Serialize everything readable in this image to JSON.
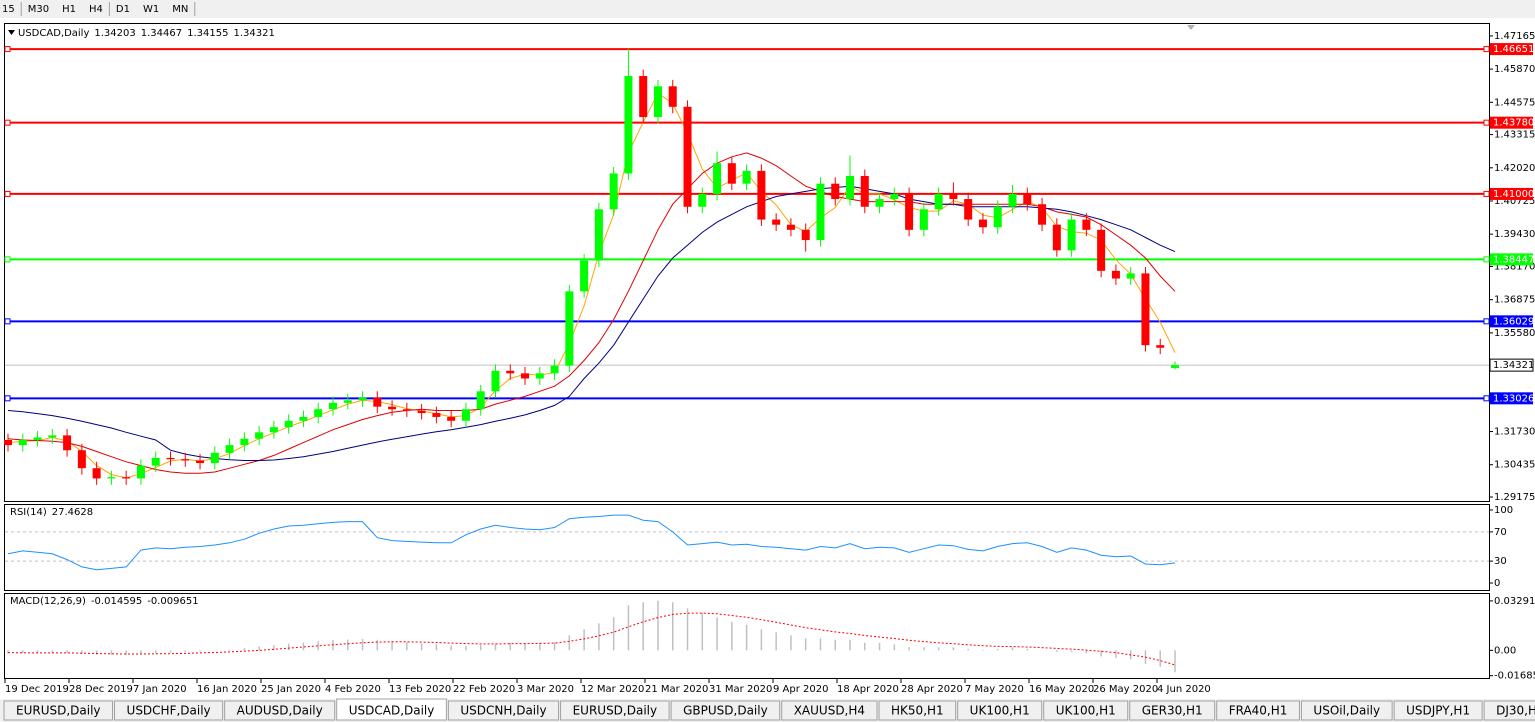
{
  "toolbar": {
    "timeframes": [
      "15",
      "M30",
      "H1",
      "H4",
      "D1",
      "W1",
      "MN"
    ]
  },
  "chart_data": [
    {
      "type": "candlestick",
      "symbol": "USDCAD,Daily",
      "up_color": "#00ff00",
      "down_color": "#ff0000",
      "candles": [
        [
          1.314,
          1.3165,
          1.3095,
          1.312
        ],
        [
          1.312,
          1.3165,
          1.3095,
          1.314
        ],
        [
          1.314,
          1.3175,
          1.3115,
          1.315
        ],
        [
          1.315,
          1.3183,
          1.3125,
          1.3158
        ],
        [
          1.3158,
          1.3183,
          1.3075,
          1.31
        ],
        [
          1.31,
          1.3125,
          1.3005,
          1.303
        ],
        [
          1.303,
          1.3055,
          1.2965,
          1.299
        ],
        [
          1.299,
          1.302,
          1.2965,
          1.2995
        ],
        [
          1.2995,
          1.302,
          1.2965,
          1.299
        ],
        [
          1.299,
          1.3065,
          1.2965,
          1.304
        ],
        [
          1.304,
          1.3095,
          1.3015,
          1.307
        ],
        [
          1.307,
          1.3095,
          1.304,
          1.3065
        ],
        [
          1.3065,
          1.309,
          1.3035,
          1.306
        ],
        [
          1.306,
          1.3085,
          1.3025,
          1.305
        ],
        [
          1.305,
          1.3115,
          1.3025,
          1.309
        ],
        [
          1.309,
          1.3145,
          1.3065,
          1.312
        ],
        [
          1.312,
          1.317,
          1.3095,
          1.3145
        ],
        [
          1.3145,
          1.3195,
          1.312,
          1.317
        ],
        [
          1.317,
          1.3215,
          1.3145,
          1.319
        ],
        [
          1.319,
          1.324,
          1.3165,
          1.3215
        ],
        [
          1.3215,
          1.3255,
          1.319,
          1.323
        ],
        [
          1.323,
          1.3285,
          1.3205,
          1.326
        ],
        [
          1.326,
          1.331,
          1.3235,
          1.3285
        ],
        [
          1.3285,
          1.332,
          1.326,
          1.3295
        ],
        [
          1.3295,
          1.333,
          1.327,
          1.3305
        ],
        [
          1.3305,
          1.333,
          1.3245,
          1.327
        ],
        [
          1.327,
          1.3295,
          1.3235,
          1.326
        ],
        [
          1.326,
          1.3285,
          1.323,
          1.3255
        ],
        [
          1.3255,
          1.328,
          1.322,
          1.3245
        ],
        [
          1.3245,
          1.327,
          1.3205,
          1.323
        ],
        [
          1.323,
          1.3255,
          1.319,
          1.3215
        ],
        [
          1.3215,
          1.3285,
          1.319,
          1.326
        ],
        [
          1.326,
          1.3355,
          1.3235,
          1.333
        ],
        [
          1.333,
          1.3435,
          1.3305,
          1.341
        ],
        [
          1.341,
          1.3435,
          1.3375,
          1.34
        ],
        [
          1.34,
          1.3425,
          1.3355,
          1.338
        ],
        [
          1.338,
          1.3425,
          1.3355,
          1.34
        ],
        [
          1.34,
          1.3455,
          1.3375,
          1.343
        ],
        [
          1.343,
          1.3745,
          1.3405,
          1.372
        ],
        [
          1.372,
          1.3865,
          1.3695,
          1.384
        ],
        [
          1.384,
          1.4065,
          1.3815,
          1.404
        ],
        [
          1.404,
          1.4205,
          1.4015,
          1.418
        ],
        [
          1.418,
          1.4667,
          1.4155,
          1.456
        ],
        [
          1.456,
          1.4585,
          1.4375,
          1.44
        ],
        [
          1.44,
          1.4545,
          1.4375,
          1.452
        ],
        [
          1.452,
          1.4545,
          1.4415,
          1.444
        ],
        [
          1.444,
          1.4465,
          1.4025,
          1.405
        ],
        [
          1.405,
          1.4125,
          1.4025,
          1.41
        ],
        [
          1.41,
          1.4265,
          1.4075,
          1.422
        ],
        [
          1.422,
          1.4245,
          1.4115,
          1.414
        ],
        [
          1.414,
          1.4215,
          1.4115,
          1.419
        ],
        [
          1.419,
          1.4215,
          1.3975,
          1.4
        ],
        [
          1.4,
          1.4025,
          1.3955,
          1.398
        ],
        [
          1.398,
          1.4005,
          1.3935,
          1.396
        ],
        [
          1.396,
          1.3985,
          1.3875,
          1.392
        ],
        [
          1.392,
          1.4165,
          1.3895,
          1.414
        ],
        [
          1.414,
          1.4165,
          1.4055,
          1.408
        ],
        [
          1.408,
          1.425,
          1.4055,
          1.417
        ],
        [
          1.417,
          1.4195,
          1.4025,
          1.405
        ],
        [
          1.405,
          1.4105,
          1.4025,
          1.408
        ],
        [
          1.408,
          1.4125,
          1.4055,
          1.41
        ],
        [
          1.41,
          1.4125,
          1.3935,
          1.396
        ],
        [
          1.396,
          1.4065,
          1.3935,
          1.404
        ],
        [
          1.404,
          1.4125,
          1.4015,
          1.41
        ],
        [
          1.41,
          1.4145,
          1.4055,
          1.408
        ],
        [
          1.408,
          1.4105,
          1.3975,
          1.4
        ],
        [
          1.4,
          1.4025,
          1.3945,
          1.397
        ],
        [
          1.397,
          1.4075,
          1.3945,
          1.405
        ],
        [
          1.405,
          1.4135,
          1.4025,
          1.41
        ],
        [
          1.41,
          1.4125,
          1.4035,
          1.406
        ],
        [
          1.406,
          1.4085,
          1.3955,
          1.398
        ],
        [
          1.398,
          1.4005,
          1.3855,
          1.388
        ],
        [
          1.388,
          1.4025,
          1.3855,
          1.4
        ],
        [
          1.4,
          1.4025,
          1.3935,
          1.396
        ],
        [
          1.396,
          1.3985,
          1.3775,
          1.38
        ],
        [
          1.38,
          1.3825,
          1.3745,
          1.377
        ],
        [
          1.377,
          1.3815,
          1.3745,
          1.379
        ],
        [
          1.379,
          1.3815,
          1.3485,
          1.351
        ],
        [
          1.351,
          1.3535,
          1.3475,
          1.35
        ],
        [
          1.34203,
          1.34467,
          1.34155,
          1.34321
        ]
      ],
      "moving_averages": [
        {
          "color": "#ffa500",
          "values": [
            1.313,
            1.3135,
            1.3137,
            1.315,
            1.3136,
            1.3096,
            1.304,
            1.3005,
            1.2992,
            1.3008,
            1.3033,
            1.3058,
            1.3065,
            1.3058,
            1.3067,
            1.3087,
            1.3118,
            1.3145,
            1.3168,
            1.3192,
            1.3212,
            1.3235,
            1.3258,
            1.328,
            1.3295,
            1.329,
            1.3278,
            1.3262,
            1.3253,
            1.3243,
            1.323,
            1.3235,
            1.3268,
            1.3333,
            1.338,
            1.3397,
            1.3393,
            1.3403,
            1.3517,
            1.3663,
            1.3867,
            1.402,
            1.426,
            1.438,
            1.4493,
            1.4453,
            1.4337,
            1.4197,
            1.4123,
            1.4153,
            1.4183,
            1.411,
            1.4057,
            1.398,
            1.3953,
            1.4007,
            1.4047,
            1.413,
            1.41,
            1.41,
            1.4077,
            1.4047,
            1.4033,
            1.4033,
            1.4073,
            1.406,
            1.4017,
            1.4007,
            1.404,
            1.407,
            1.4047,
            1.3973,
            1.3953,
            1.3947,
            1.392,
            1.3843,
            1.3787,
            1.369,
            1.36,
            1.3481
          ]
        },
        {
          "color": "#e00000",
          "values": [
            1.3145,
            1.314,
            1.3138,
            1.3135,
            1.313,
            1.3115,
            1.3095,
            1.3075,
            1.3055,
            1.304,
            1.3025,
            1.3015,
            1.301,
            1.301,
            1.3015,
            1.303,
            1.3045,
            1.306,
            1.308,
            1.3105,
            1.313,
            1.3155,
            1.318,
            1.32,
            1.322,
            1.3235,
            1.3248,
            1.3255,
            1.326,
            1.3255,
            1.3255,
            1.3255,
            1.326,
            1.328,
            1.3295,
            1.331,
            1.333,
            1.335,
            1.339,
            1.345,
            1.352,
            1.361,
            1.372,
            1.384,
            1.396,
            1.406,
            1.412,
            1.418,
            1.422,
            1.4245,
            1.426,
            1.424,
            1.421,
            1.417,
            1.413,
            1.411,
            1.409,
            1.408,
            1.407,
            1.407,
            1.407,
            1.407,
            1.406,
            1.406,
            1.406,
            1.406,
            1.406,
            1.406,
            1.406,
            1.406,
            1.405,
            1.403,
            1.402,
            1.401,
            1.398,
            1.394,
            1.39,
            1.385,
            1.378,
            1.372
          ]
        },
        {
          "color": "#000080",
          "values": [
            1.3255,
            1.325,
            1.3243,
            1.3235,
            1.3225,
            1.3213,
            1.32,
            1.3187,
            1.317,
            1.3155,
            1.314,
            1.31,
            1.3085,
            1.3075,
            1.3068,
            1.3063,
            1.306,
            1.306,
            1.3062,
            1.3068,
            1.3075,
            1.3085,
            1.3095,
            1.3108,
            1.312,
            1.3132,
            1.3143,
            1.3153,
            1.3163,
            1.3172,
            1.318,
            1.319,
            1.32,
            1.3213,
            1.3225,
            1.3238,
            1.3255,
            1.3275,
            1.331,
            1.338,
            1.344,
            1.351,
            1.36,
            1.369,
            1.378,
            1.385,
            1.39,
            1.395,
            1.399,
            1.402,
            1.405,
            1.407,
            1.409,
            1.41,
            1.411,
            1.412,
            1.4125,
            1.413,
            1.412,
            1.411,
            1.41,
            1.408,
            1.407,
            1.406,
            1.406,
            1.405,
            1.405,
            1.405,
            1.405,
            1.405,
            1.4045,
            1.404,
            1.403,
            1.4015,
            1.4,
            1.398,
            1.396,
            1.393,
            1.39,
            1.3875
          ]
        }
      ],
      "levels": [
        {
          "price": 1.46651,
          "color": "#ff0000"
        },
        {
          "price": {
            "value": 1.4378,
            "label": "1.43780"
          },
          "color": "#ff0000"
        },
        {
          "price": {
            "value": 1.41,
            "label": "1.41000"
          },
          "color": "#ff0000"
        },
        {
          "price": 1.38447,
          "color": "#00ff00"
        },
        {
          "price": 1.36029,
          "color": "#0000ff"
        },
        {
          "price": 1.33026,
          "color": "#0000ff"
        }
      ],
      "ylim": [
        1.2902,
        1.4763
      ],
      "yticks": [
        1.47165,
        {
          "value": 1.4587,
          "label": "1.45870"
        },
        1.44575,
        1.43315,
        {
          "value": 1.4202,
          "label": "1.42020"
        },
        1.40725,
        {
          "value": 1.3943,
          "label": "1.39430"
        },
        {
          "value": 1.3817,
          "label": "1.38170"
        },
        1.36875,
        {
          "value": 1.3558,
          "label": "1.35580"
        },
        {
          "value": 1.3173,
          "label": "1.31730"
        },
        1.30435,
        1.29175
      ],
      "x_labels": [
        "19 Dec 2019",
        "28 Dec 2019",
        "7 Jan 2020",
        "16 Jan 2020",
        "25 Jan 2020",
        "4 Feb 2020",
        "13 Feb 2020",
        "22 Feb 2020",
        "3 Mar 2020",
        "12 Mar 2020",
        "21 Mar 2020",
        "31 Mar 2020",
        "9 Apr 2020",
        "18 Apr 2020",
        "28 Apr 2020",
        "7 May 2020",
        "16 May 2020",
        "26 May 2020",
        "4 Jun 2020"
      ]
    },
    {
      "type": "line",
      "title": "RSI(14)",
      "color": "#1e90ff",
      "ylim": [
        -9.6,
        106.8
      ],
      "yticks": [
        100,
        70,
        30,
        0
      ],
      "levels": [
        70,
        30
      ],
      "values": [
        40,
        44,
        42,
        40,
        32,
        22,
        18,
        20,
        22,
        45,
        48,
        47,
        49,
        50,
        52,
        55,
        60,
        68,
        74,
        78,
        79,
        81,
        83,
        84,
        84,
        62,
        58,
        57,
        56,
        55,
        55,
        66,
        74,
        79,
        76,
        74,
        73,
        76,
        88,
        90,
        91,
        93,
        93,
        86,
        84,
        70,
        52,
        54,
        56,
        52,
        53,
        50,
        49,
        47,
        45,
        50,
        48,
        54,
        47,
        49,
        48,
        42,
        47,
        52,
        51,
        46,
        44,
        50,
        54,
        55,
        50,
        42,
        48,
        45,
        38,
        36,
        37,
        26,
        25,
        27.4628
      ]
    },
    {
      "type": "macd",
      "title": "MACD(12,26,9)",
      "color": "#c0c0c0",
      "ylim": [
        -0.0184,
        0.0375
      ],
      "yticks": [
        0.03291,
        {
          "value": 0,
          "label": "0.00"
        },
        -0.016857
      ],
      "values": [
        -0.002,
        -0.002,
        -0.0018,
        -0.0016,
        -0.0018,
        -0.0025,
        -0.003,
        -0.003,
        -0.003,
        -0.0025,
        -0.002,
        -0.0015,
        -0.001,
        -0.0008,
        -0.0002,
        0.0005,
        0.0015,
        0.0025,
        0.0035,
        0.0045,
        0.0052,
        0.006,
        0.0068,
        0.0072,
        0.0075,
        0.007,
        0.0063,
        0.0055,
        0.0047,
        0.004,
        0.0032,
        0.003,
        0.0035,
        0.0045,
        0.005,
        0.005,
        0.005,
        0.0055,
        0.01,
        0.014,
        0.018,
        0.022,
        0.03,
        0.032,
        0.033,
        0.032,
        0.028,
        0.025,
        0.022,
        0.019,
        0.017,
        0.014,
        0.012,
        0.01,
        0.008,
        0.008,
        0.007,
        0.007,
        0.005,
        0.005,
        0.004,
        0.002,
        0.002,
        0.002,
        0.002,
        0.001,
        0.0005,
        0.001,
        0.002,
        0.001,
        0,
        -0.001,
        -0.001,
        -0.002,
        -0.004,
        -0.005,
        -0.006,
        -0.009,
        -0.011,
        -0.014595
      ],
      "signal": {
        "color": "#ff0000",
        "values": [
          -0.0015,
          -0.0016,
          -0.0017,
          -0.0017,
          -0.0017,
          -0.0019,
          -0.0021,
          -0.0023,
          -0.0024,
          -0.0024,
          -0.0023,
          -0.0022,
          -0.002,
          -0.0017,
          -0.0014,
          -0.001,
          -0.0005,
          0,
          0.0007,
          0.0015,
          0.0022,
          0.003,
          0.0037,
          0.0044,
          0.005,
          0.0055,
          0.0057,
          0.0057,
          0.0055,
          0.0052,
          0.0048,
          0.0045,
          0.0043,
          0.0043,
          0.0044,
          0.0045,
          0.0046,
          0.0048,
          0.006,
          0.0076,
          0.0097,
          0.0121,
          0.0157,
          0.019,
          0.0218,
          0.0239,
          0.0247,
          0.0248,
          0.0243,
          0.0232,
          0.022,
          0.0204,
          0.0187,
          0.0169,
          0.0151,
          0.0137,
          0.0123,
          0.0112,
          0.0099,
          0.0089,
          0.0079,
          0.0067,
          0.0058,
          0.005,
          0.0044,
          0.0037,
          0.0031,
          0.0026,
          0.0025,
          0.0022,
          0.0018,
          0.0012,
          0.0008,
          0.0002,
          -0.0006,
          -0.0015,
          -0.003,
          -0.0045,
          -0.0068,
          -0.009651
        ]
      }
    }
  ],
  "tabs": [
    "EURUSD,Daily",
    "USDCHF,Daily",
    "AUDUSD,Daily",
    "USDCAD,Daily",
    "USDCNH,Daily",
    "EURUSD,Daily",
    "GBPUSD,Daily",
    "XAUUSD,H4",
    "HK50,H1",
    "UK100,H1",
    "UK100,H1",
    "GER30,H1",
    "FRA40,H1",
    "USOil,Daily",
    "USDJPY,H1",
    "DJ30,H1"
  ],
  "active_tab": 3
}
